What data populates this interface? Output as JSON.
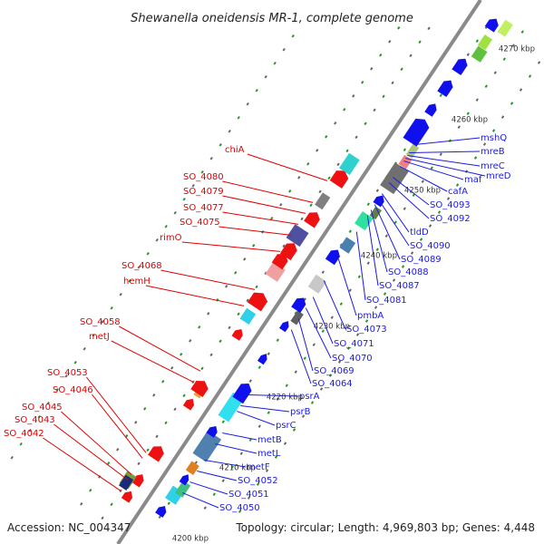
{
  "title": "Shewanella oneidensis MR-1, complete genome",
  "accession": "Accession: NC_004347",
  "summary": "Topology: circular; Length: 4,969,803 bp; Genes: 4,448",
  "kbp_labels": [
    "4200 kbp",
    "4210 kbp",
    "4220 kbp",
    "4230 kbp",
    "4240 kbp",
    "4250 kbp",
    "4260 kbp",
    "4270 kbp"
  ],
  "left_labels": [
    "chiA",
    "SO_4080",
    "SO_4079",
    "SO_4077",
    "SO_4075",
    "rimO",
    "SO_4068",
    "hemH",
    "SO_4058",
    "metJ",
    "SO_4053",
    "SO_4046",
    "SO_4045",
    "SO_4043",
    "SO_4042"
  ],
  "right_labels": [
    "mshQ",
    "mreB",
    "mreC",
    "maf",
    "mreD",
    "cafA",
    "SO_4093",
    "SO_4092",
    "tldD",
    "SO_4090",
    "SO_4089",
    "SO_4088",
    "SO_4087",
    "SO_4081",
    "pmbA",
    "SO_4073",
    "SO_4071",
    "SO_4070",
    "SO_4069",
    "SO_4064",
    "psrA",
    "psrB",
    "psrC",
    "metB",
    "metL",
    "metF",
    "SO_4052",
    "SO_4051",
    "SO_4050"
  ],
  "colors": {
    "forward_strand": "#ee1111",
    "reverse_strand": "#1010ee",
    "backbone": "#888888",
    "left_label": "#e00000",
    "right_label": "#1a1ae6"
  }
}
